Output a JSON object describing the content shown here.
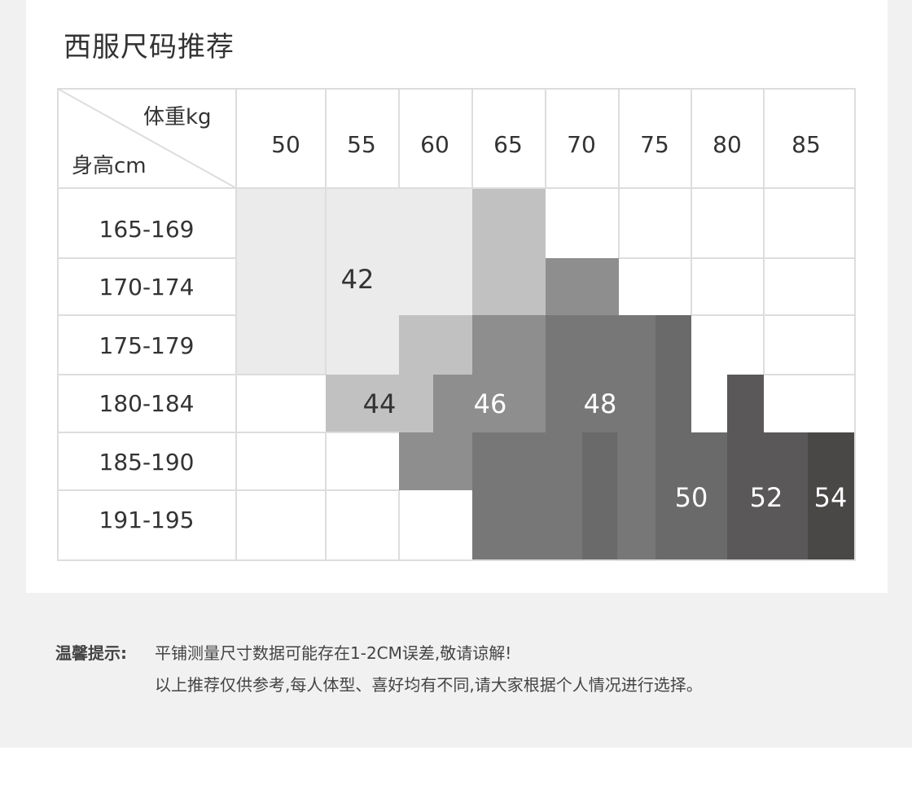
{
  "title": "西服尺码推荐",
  "table": {
    "corner_weight": "体重kg",
    "corner_height": "身高cm",
    "weights": [
      "50",
      "55",
      "60",
      "65",
      "70",
      "75",
      "80",
      "85"
    ],
    "heights": [
      "165-169",
      "170-174",
      "175-179",
      "180-184",
      "185-190",
      "191-195"
    ],
    "sizes": [
      "42",
      "44",
      "46",
      "48",
      "50",
      "52",
      "54"
    ]
  },
  "colors": {
    "size_42": "#ebebeb",
    "size_44": "#c1c1c1",
    "size_46": "#8e8e8e",
    "size_48": "#777777",
    "size_50": "#6a6a6a",
    "size_52": "#5a5858",
    "size_54": "#4a4747",
    "grid_line": "#dddddd"
  },
  "note": {
    "label": "温馨提示:",
    "line1": "平铺测量尺寸数据可能存在1-2CM误差,敬请谅解!",
    "line2": "以上推荐仅供参考,每人体型、喜好均有不同,请大家根据个人情况进行选择。"
  }
}
